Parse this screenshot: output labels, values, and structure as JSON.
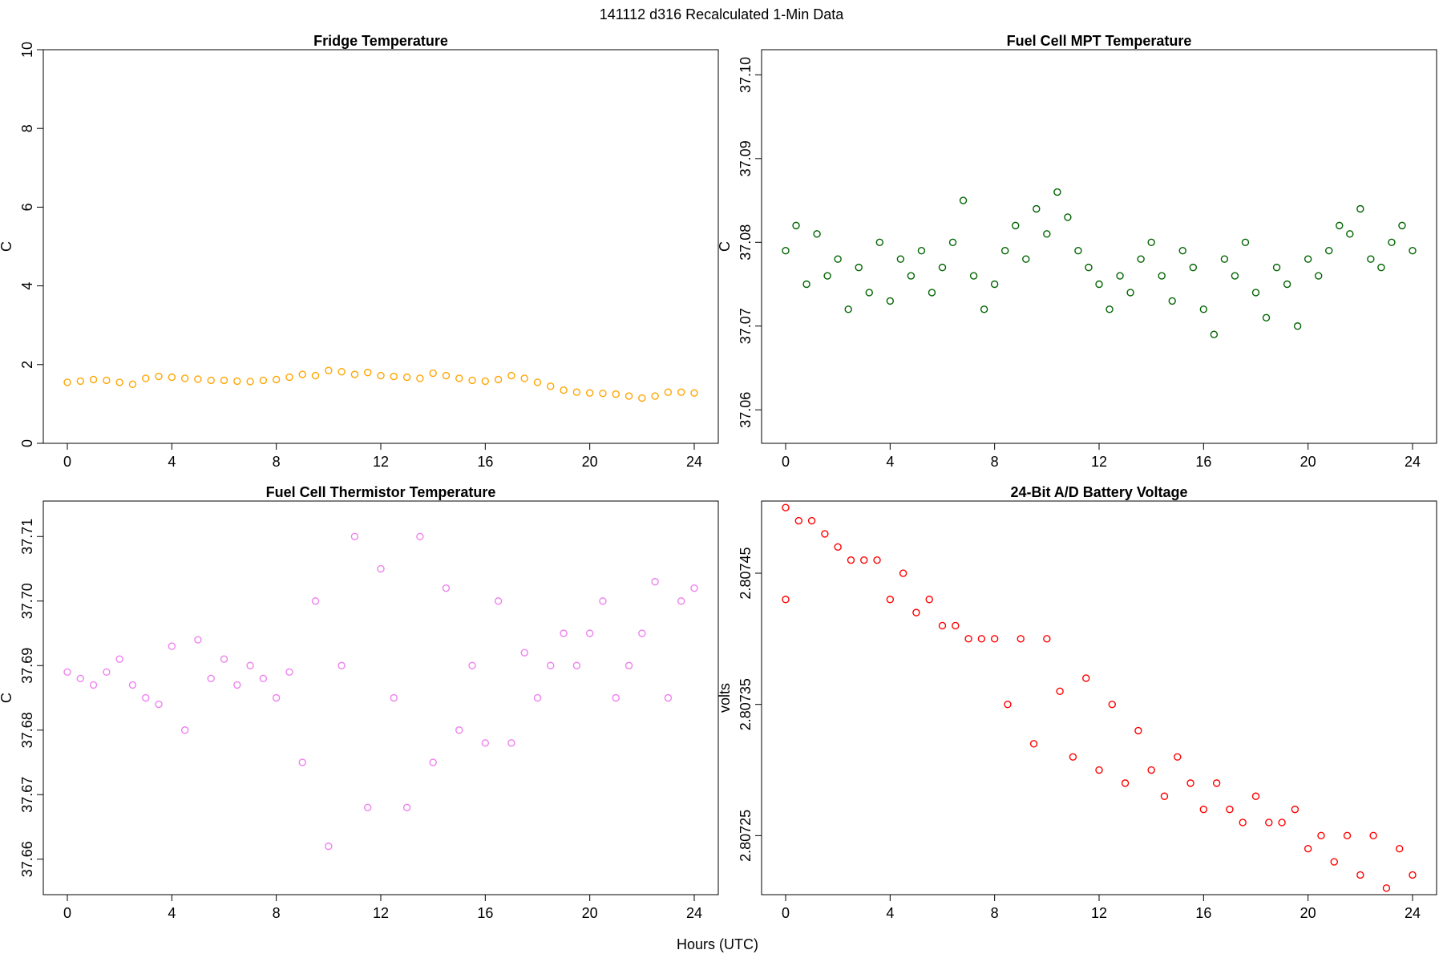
{
  "figure": {
    "title": "141112   d316   Recalculated 1-Min Data",
    "xlabel": "Hours (UTC)"
  },
  "chart_data": [
    {
      "type": "scatter",
      "title": "Fridge Temperature",
      "xlabel": "Hours (UTC)",
      "ylabel": "C",
      "color": "#FFA500",
      "xlim": [
        0,
        24
      ],
      "ylim": [
        0,
        10
      ],
      "xticks": [
        0,
        4,
        8,
        12,
        16,
        20,
        24
      ],
      "yticks": [
        0,
        2,
        4,
        6,
        8,
        10
      ],
      "ytick_labels": [
        "0",
        "2",
        "4",
        "6",
        "8",
        "10"
      ],
      "series": [
        {
          "x": [
            0,
            0.5,
            1,
            1.5,
            2,
            2.5,
            3,
            3.5,
            4,
            4.5,
            5,
            5.5,
            6,
            6.5,
            7,
            7.5,
            8,
            8.5,
            9,
            9.5,
            10,
            10.5,
            11,
            11.5,
            12,
            12.5,
            13,
            13.5,
            14,
            14.5,
            15,
            15.5,
            16,
            16.5,
            17,
            17.5,
            18,
            18.5,
            19,
            19.5,
            20,
            20.5,
            21,
            21.5,
            22,
            22.5,
            23,
            23.5,
            24
          ],
          "y": [
            1.55,
            1.58,
            1.62,
            1.6,
            1.55,
            1.5,
            1.65,
            1.7,
            1.68,
            1.65,
            1.63,
            1.6,
            1.6,
            1.58,
            1.57,
            1.6,
            1.62,
            1.68,
            1.75,
            1.72,
            1.85,
            1.82,
            1.75,
            1.8,
            1.72,
            1.7,
            1.68,
            1.65,
            1.78,
            1.72,
            1.65,
            1.6,
            1.58,
            1.62,
            1.72,
            1.65,
            1.55,
            1.45,
            1.35,
            1.3,
            1.28,
            1.27,
            1.25,
            1.2,
            1.15,
            1.2,
            1.3,
            1.3,
            1.28
          ]
        }
      ]
    },
    {
      "type": "scatter",
      "title": "Fuel Cell MPT Temperature",
      "xlabel": "Hours (UTC)",
      "ylabel": "C",
      "color": "#006400",
      "xlim": [
        0,
        24
      ],
      "ylim": [
        37.056,
        37.103
      ],
      "xticks": [
        0,
        4,
        8,
        12,
        16,
        20,
        24
      ],
      "yticks": [
        37.06,
        37.07,
        37.08,
        37.09,
        37.1
      ],
      "ytick_labels": [
        "37.06",
        "37.07",
        "37.08",
        "37.09",
        "37.10"
      ],
      "series": [
        {
          "x": [
            0,
            0.4,
            0.8,
            1.2,
            1.6,
            2,
            2.4,
            2.8,
            3.2,
            3.6,
            4,
            4.4,
            4.8,
            5.2,
            5.6,
            6,
            6.4,
            6.8,
            7.2,
            7.6,
            8,
            8.4,
            8.8,
            9.2,
            9.6,
            10,
            10.4,
            10.8,
            11.2,
            11.6,
            12,
            12.4,
            12.8,
            13.2,
            13.6,
            14,
            14.4,
            14.8,
            15.2,
            15.6,
            16,
            16.4,
            16.8,
            17.2,
            17.6,
            18,
            18.4,
            18.8,
            19.2,
            19.6,
            20,
            20.4,
            20.8,
            21.2,
            21.6,
            22,
            22.4,
            22.8,
            23.2,
            23.6,
            24
          ],
          "y": [
            37.079,
            37.082,
            37.075,
            37.081,
            37.076,
            37.078,
            37.072,
            37.077,
            37.074,
            37.08,
            37.073,
            37.078,
            37.076,
            37.079,
            37.074,
            37.077,
            37.08,
            37.085,
            37.076,
            37.072,
            37.075,
            37.079,
            37.082,
            37.078,
            37.084,
            37.081,
            37.086,
            37.083,
            37.079,
            37.077,
            37.075,
            37.072,
            37.076,
            37.074,
            37.078,
            37.08,
            37.076,
            37.073,
            37.079,
            37.077,
            37.072,
            37.069,
            37.078,
            37.076,
            37.08,
            37.074,
            37.071,
            37.077,
            37.075,
            37.07,
            37.078,
            37.076,
            37.079,
            37.082,
            37.081,
            37.084,
            37.078,
            37.077,
            37.08,
            37.082,
            37.079
          ]
        }
      ]
    },
    {
      "type": "scatter",
      "title": "Fuel Cell Thermistor Temperature",
      "xlabel": "Hours (UTC)",
      "ylabel": "C",
      "color": "#EE82EE",
      "xlim": [
        0,
        24
      ],
      "ylim": [
        37.6545,
        37.7155
      ],
      "xticks": [
        0,
        4,
        8,
        12,
        16,
        20,
        24
      ],
      "yticks": [
        37.66,
        37.67,
        37.68,
        37.69,
        37.7,
        37.71
      ],
      "ytick_labels": [
        "37.66",
        "37.67",
        "37.68",
        "37.69",
        "37.70",
        "37.71"
      ],
      "series": [
        {
          "x": [
            0,
            0.5,
            1,
            1.5,
            2,
            2.5,
            3,
            3.5,
            4,
            4.5,
            5,
            5.5,
            6,
            6.5,
            7,
            7.5,
            8,
            8.5,
            9,
            9.5,
            10,
            10.5,
            11,
            11.5,
            12,
            12.5,
            13,
            13.5,
            14,
            14.5,
            15,
            15.5,
            16,
            16.5,
            17,
            17.5,
            18,
            18.5,
            19,
            19.5,
            20,
            20.5,
            21,
            21.5,
            22,
            22.5,
            23,
            23.5,
            24
          ],
          "y": [
            37.689,
            37.688,
            37.687,
            37.689,
            37.691,
            37.687,
            37.685,
            37.684,
            37.693,
            37.68,
            37.694,
            37.688,
            37.691,
            37.687,
            37.69,
            37.688,
            37.685,
            37.689,
            37.675,
            37.7,
            37.662,
            37.69,
            37.71,
            37.668,
            37.705,
            37.685,
            37.668,
            37.71,
            37.675,
            37.702,
            37.68,
            37.69,
            37.678,
            37.7,
            37.678,
            37.692,
            37.685,
            37.69,
            37.695,
            37.69,
            37.695,
            37.7,
            37.685,
            37.69,
            37.695,
            37.703,
            37.685,
            37.7,
            37.702
          ]
        }
      ]
    },
    {
      "type": "scatter",
      "title": "24-Bit A/D Battery Voltage",
      "xlabel": "Hours (UTC)",
      "ylabel": "volts",
      "color": "#FF0000",
      "xlim": [
        0,
        24
      ],
      "ylim": [
        2.807205,
        2.807505
      ],
      "xticks": [
        0,
        4,
        8,
        12,
        16,
        20,
        24
      ],
      "yticks": [
        2.80725,
        2.80735,
        2.80745
      ],
      "ytick_labels": [
        "2.80725",
        "2.80735",
        "2.80745"
      ],
      "outliers": [
        {
          "x": 0,
          "y": 2.80743
        }
      ],
      "series": [
        {
          "x": [
            0,
            0.5,
            1,
            1.5,
            2,
            2.5,
            3,
            3.5,
            4,
            4.5,
            5,
            5.5,
            6,
            6.5,
            7,
            7.5,
            8,
            8.5,
            9,
            9.5,
            10,
            10.5,
            11,
            11.5,
            12,
            12.5,
            13,
            13.5,
            14,
            14.5,
            15,
            15.5,
            16,
            16.5,
            17,
            17.5,
            18,
            18.5,
            19,
            19.5,
            20,
            20.5,
            21,
            21.5,
            22,
            22.5,
            23,
            23.5,
            24
          ],
          "y": [
            2.8075,
            2.80749,
            2.80749,
            2.80748,
            2.80747,
            2.80746,
            2.80746,
            2.80746,
            2.80743,
            2.80745,
            2.80742,
            2.80743,
            2.80741,
            2.80741,
            2.8074,
            2.8074,
            2.8074,
            2.80735,
            2.8074,
            2.80732,
            2.8074,
            2.80736,
            2.80731,
            2.80737,
            2.8073,
            2.80735,
            2.80729,
            2.80733,
            2.8073,
            2.80728,
            2.80731,
            2.80729,
            2.80727,
            2.80729,
            2.80727,
            2.80726,
            2.80728,
            2.80726,
            2.80726,
            2.80727,
            2.80724,
            2.80725,
            2.80723,
            2.80725,
            2.80722,
            2.80725,
            2.80721,
            2.80724,
            2.80722
          ]
        }
      ]
    }
  ]
}
